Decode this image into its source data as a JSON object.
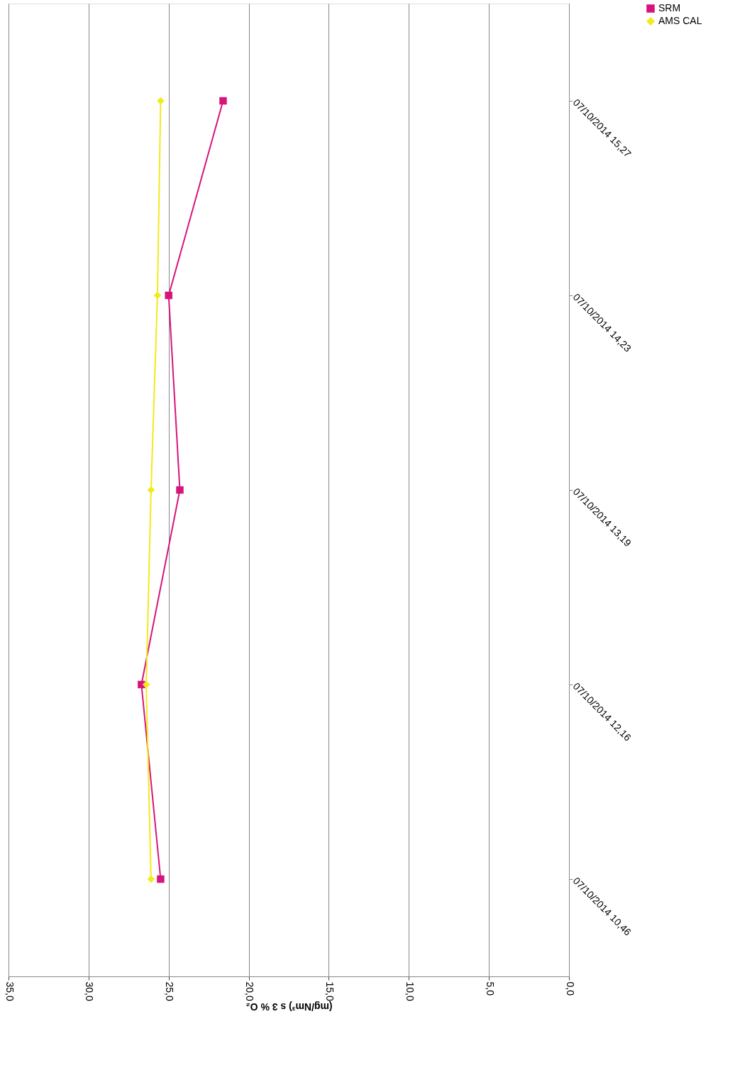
{
  "chart_data": {
    "type": "line",
    "orientation": "horizontal",
    "categories": [
      "07/10/2014 15,27",
      "07/10/2014 14,23",
      "07/10/2014 13,19",
      "07/10/2014 12,16",
      "07/10/2014 10,46"
    ],
    "series": [
      {
        "name": "SRM",
        "color": "#d6157a",
        "marker": "square",
        "values": [
          21.6,
          25.0,
          24.3,
          26.7,
          25.5
        ]
      },
      {
        "name": "AMS CAL",
        "color": "#f2ea1c",
        "marker": "diamond",
        "values": [
          25.5,
          25.7,
          26.1,
          26.4,
          26.1
        ]
      }
    ],
    "xlabel": "(mg/Nm³) s 3 % O₂",
    "xlim": [
      35,
      0
    ],
    "xticks": [
      {
        "value": 35,
        "label": "35,0"
      },
      {
        "value": 30,
        "label": "30,0"
      },
      {
        "value": 25,
        "label": "25,0"
      },
      {
        "value": 20,
        "label": "20,0"
      },
      {
        "value": 15,
        "label": "15,0"
      },
      {
        "value": 10,
        "label": "10,0"
      },
      {
        "value": 5,
        "label": "5,0"
      },
      {
        "value": 0,
        "label": "0,0"
      }
    ],
    "grid": "x",
    "legend": "right",
    "line_style": "solid"
  }
}
